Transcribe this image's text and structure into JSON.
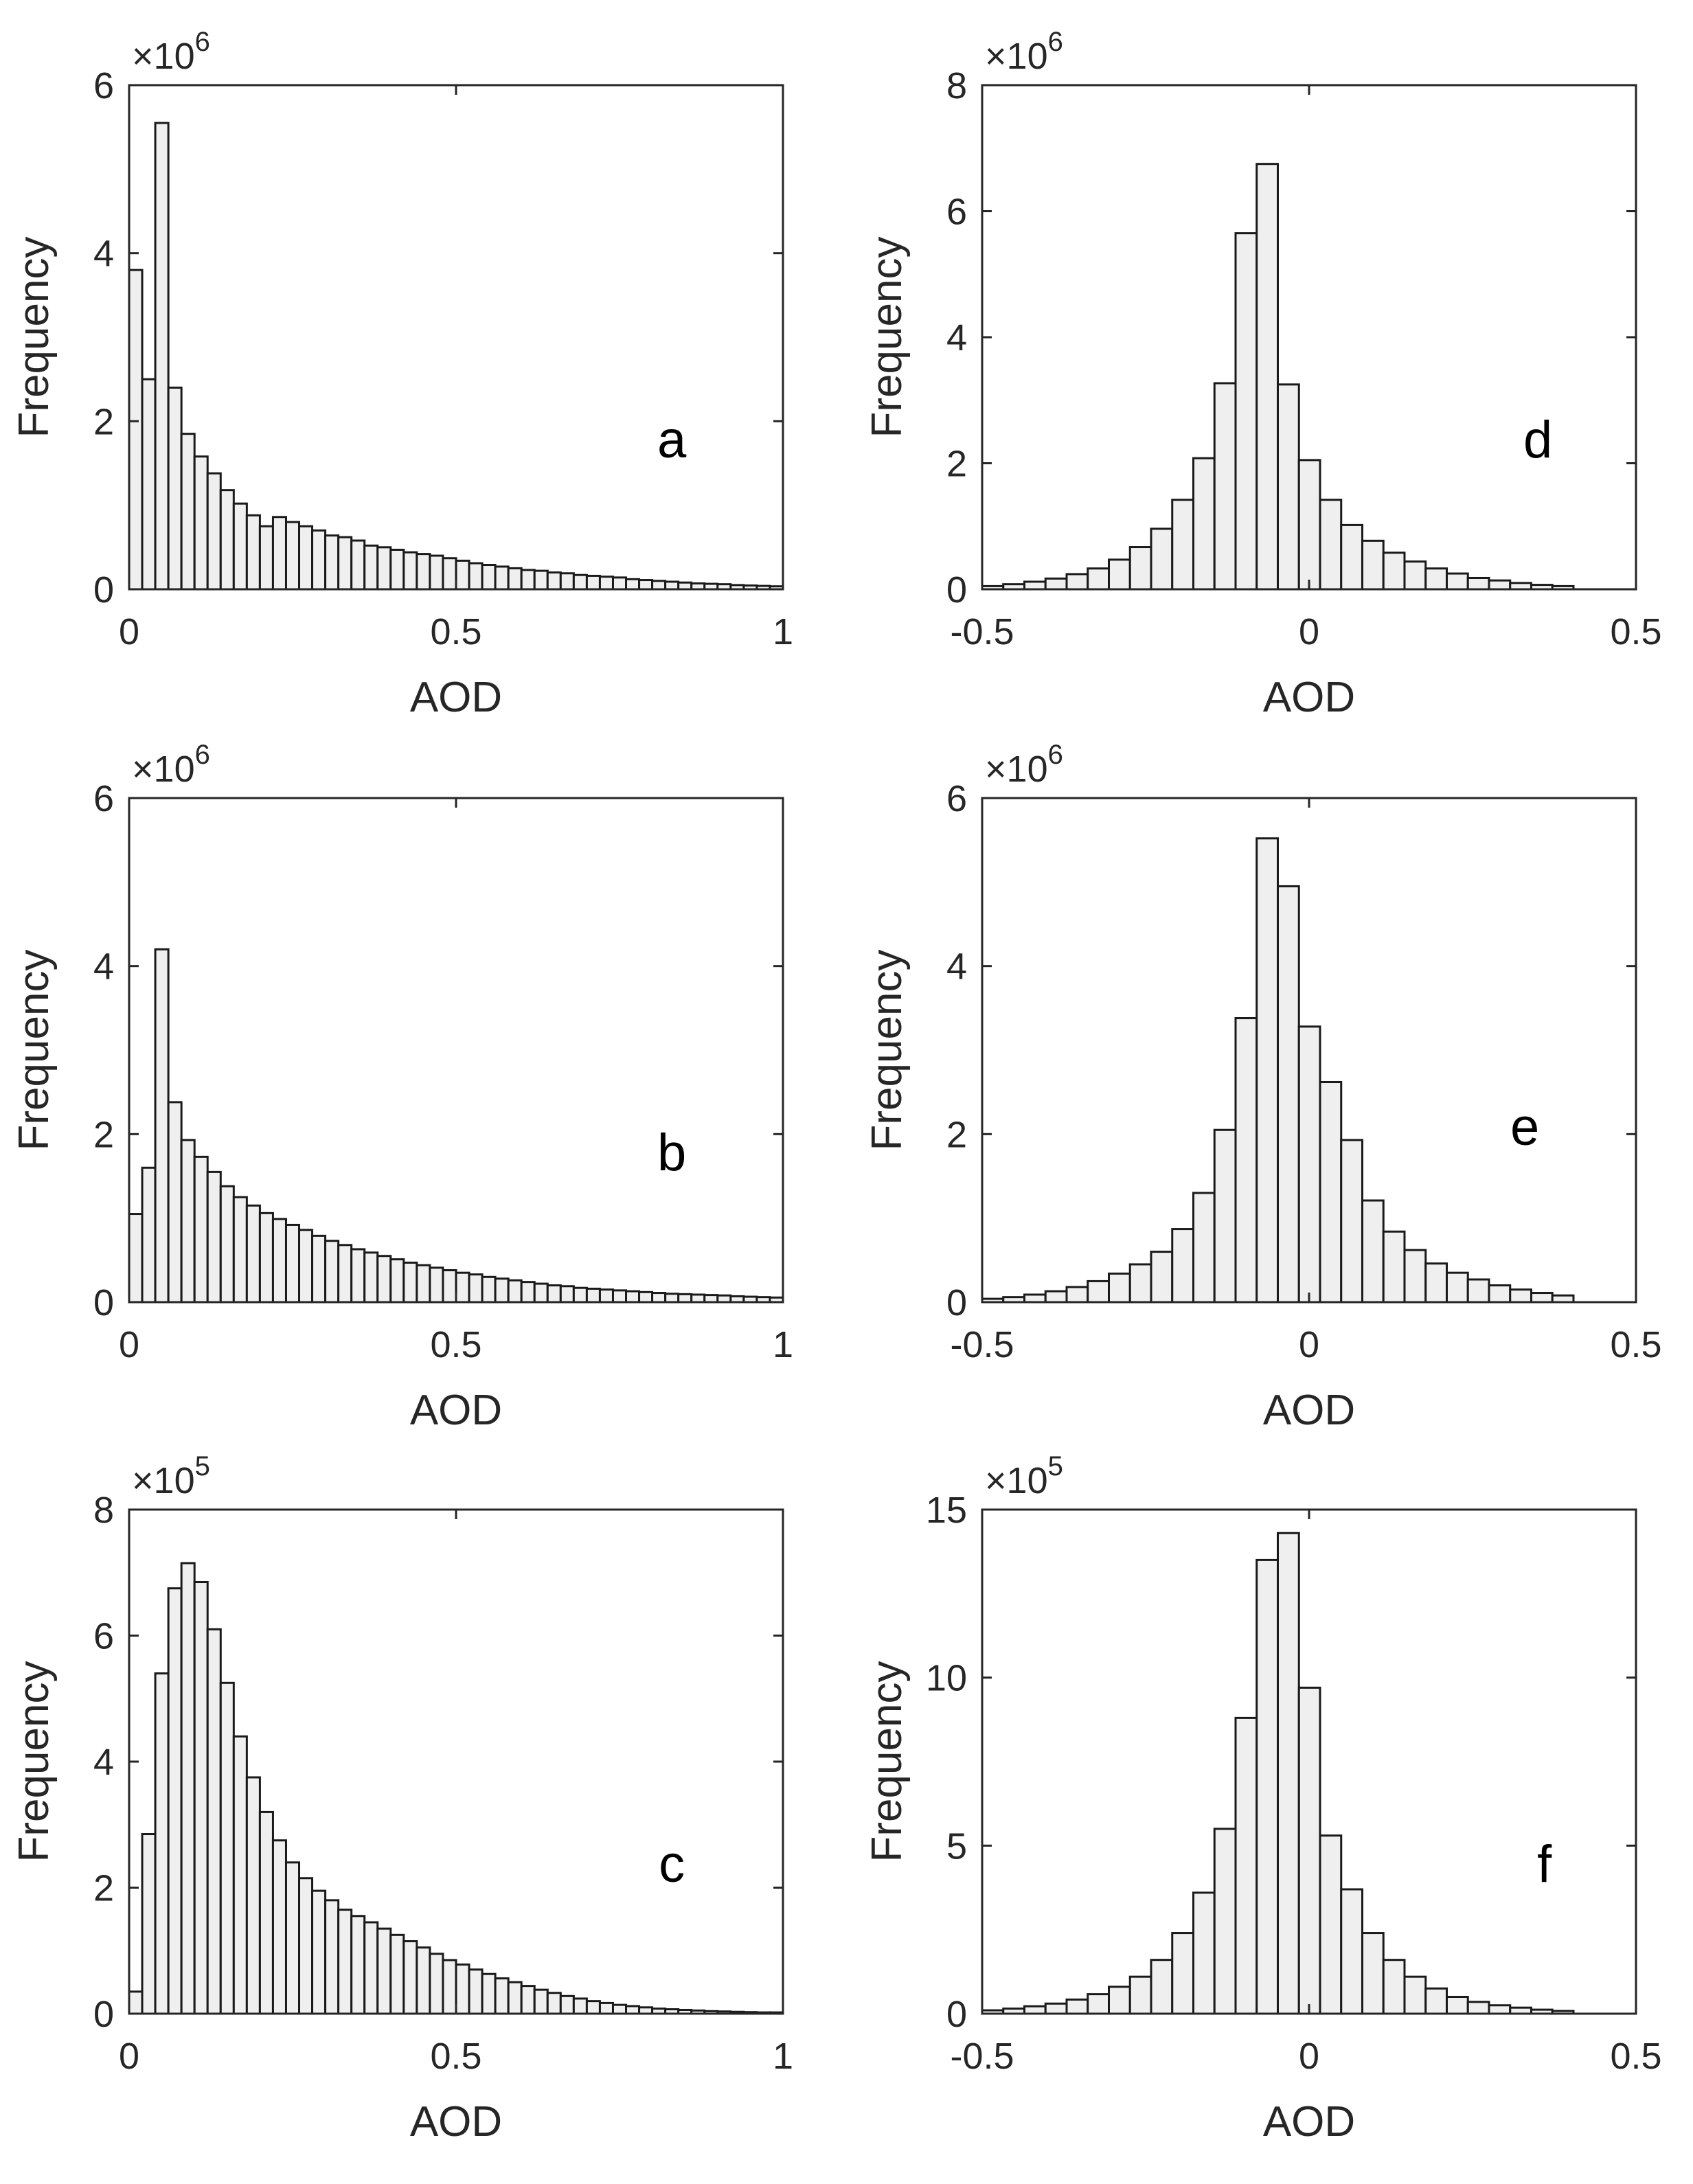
{
  "figure": {
    "panels": [
      "a",
      "b",
      "c",
      "d",
      "e",
      "f"
    ]
  },
  "chart_data": [
    {
      "panel_label": "a",
      "type": "bar",
      "xlabel": "AOD",
      "ylabel": "Frequency",
      "multiplier": "×10",
      "exponent": "6",
      "scale": 1000000,
      "xlim": [
        0,
        1
      ],
      "ylim": [
        0,
        6
      ],
      "xticks": [
        0,
        0.5,
        1
      ],
      "xtick_labels": [
        "0",
        "0.5",
        "1"
      ],
      "yticks": [
        0,
        2,
        4,
        6
      ],
      "ytick_labels": [
        "0",
        "2",
        "4",
        "6"
      ],
      "bin_start": 0,
      "bin_width": 0.02,
      "values": [
        3.8,
        2.5,
        5.55,
        2.4,
        1.85,
        1.58,
        1.38,
        1.18,
        1.02,
        0.88,
        0.75,
        0.86,
        0.8,
        0.75,
        0.7,
        0.64,
        0.62,
        0.58,
        0.52,
        0.5,
        0.47,
        0.44,
        0.42,
        0.4,
        0.37,
        0.34,
        0.31,
        0.29,
        0.27,
        0.25,
        0.23,
        0.22,
        0.2,
        0.19,
        0.17,
        0.16,
        0.15,
        0.14,
        0.12,
        0.11,
        0.1,
        0.09,
        0.08,
        0.07,
        0.065,
        0.06,
        0.05,
        0.045,
        0.04,
        0.035
      ]
    },
    {
      "panel_label": "b",
      "type": "bar",
      "xlabel": "AOD",
      "ylabel": "Frequency",
      "multiplier": "×10",
      "exponent": "6",
      "scale": 1000000,
      "xlim": [
        0,
        1
      ],
      "ylim": [
        0,
        6
      ],
      "xticks": [
        0,
        0.5,
        1
      ],
      "xtick_labels": [
        "0",
        "0.5",
        "1"
      ],
      "yticks": [
        0,
        2,
        4,
        6
      ],
      "ytick_labels": [
        "0",
        "2",
        "4",
        "6"
      ],
      "bin_start": 0,
      "bin_width": 0.02,
      "values": [
        1.05,
        1.6,
        4.2,
        2.38,
        1.93,
        1.73,
        1.55,
        1.38,
        1.25,
        1.15,
        1.06,
        0.99,
        0.92,
        0.86,
        0.79,
        0.73,
        0.68,
        0.63,
        0.59,
        0.55,
        0.51,
        0.47,
        0.44,
        0.41,
        0.38,
        0.35,
        0.33,
        0.3,
        0.28,
        0.26,
        0.24,
        0.22,
        0.2,
        0.19,
        0.17,
        0.16,
        0.15,
        0.14,
        0.13,
        0.12,
        0.11,
        0.1,
        0.095,
        0.09,
        0.085,
        0.08,
        0.07,
        0.065,
        0.06,
        0.055
      ]
    },
    {
      "panel_label": "c",
      "type": "bar",
      "xlabel": "AOD",
      "ylabel": "Frequency",
      "multiplier": "×10",
      "exponent": "5",
      "scale": 100000,
      "xlim": [
        0,
        1
      ],
      "ylim": [
        0,
        8
      ],
      "xticks": [
        0,
        0.5,
        1
      ],
      "xtick_labels": [
        "0",
        "0.5",
        "1"
      ],
      "yticks": [
        0,
        2,
        4,
        6,
        8
      ],
      "ytick_labels": [
        "0",
        "2",
        "4",
        "6",
        "8"
      ],
      "bin_start": 0,
      "bin_width": 0.02,
      "values": [
        0.35,
        2.85,
        5.4,
        6.75,
        7.15,
        6.85,
        6.1,
        5.25,
        4.4,
        3.75,
        3.2,
        2.75,
        2.4,
        2.15,
        1.95,
        1.8,
        1.65,
        1.55,
        1.45,
        1.35,
        1.25,
        1.15,
        1.05,
        0.95,
        0.85,
        0.78,
        0.7,
        0.63,
        0.56,
        0.5,
        0.44,
        0.38,
        0.33,
        0.28,
        0.24,
        0.2,
        0.17,
        0.14,
        0.12,
        0.1,
        0.08,
        0.07,
        0.06,
        0.05,
        0.04,
        0.035,
        0.03,
        0.025,
        0.02,
        0.02
      ]
    },
    {
      "panel_label": "d",
      "type": "bar",
      "xlabel": "AOD",
      "ylabel": "Frequency",
      "multiplier": "×10",
      "exponent": "6",
      "scale": 1000000,
      "xlim": [
        -0.5,
        0.5
      ],
      "ylim": [
        0,
        8
      ],
      "xticks": [
        -0.5,
        0,
        0.5
      ],
      "xtick_labels": [
        "-0.5",
        "0",
        "0.5"
      ],
      "yticks": [
        0,
        2,
        4,
        6,
        8
      ],
      "ytick_labels": [
        "0",
        "2",
        "4",
        "6",
        "8"
      ],
      "bin_start": -0.5,
      "bin_width": 0.0323,
      "values": [
        0.05,
        0.08,
        0.12,
        0.17,
        0.24,
        0.33,
        0.47,
        0.67,
        0.96,
        1.42,
        2.08,
        3.27,
        5.65,
        6.75,
        3.25,
        2.05,
        1.42,
        1.02,
        0.77,
        0.58,
        0.44,
        0.33,
        0.25,
        0.18,
        0.14,
        0.1,
        0.07,
        0.05
      ]
    },
    {
      "panel_label": "e",
      "type": "bar",
      "xlabel": "AOD",
      "ylabel": "Frequency",
      "multiplier": "×10",
      "exponent": "6",
      "scale": 1000000,
      "xlim": [
        -0.5,
        0.5
      ],
      "ylim": [
        0,
        6
      ],
      "xticks": [
        -0.5,
        0,
        0.5
      ],
      "xtick_labels": [
        "-0.5",
        "0",
        "0.5"
      ],
      "yticks": [
        0,
        2,
        4,
        6
      ],
      "ytick_labels": [
        "0",
        "2",
        "4",
        "6"
      ],
      "bin_start": -0.5,
      "bin_width": 0.0323,
      "values": [
        0.04,
        0.06,
        0.09,
        0.13,
        0.18,
        0.25,
        0.34,
        0.45,
        0.6,
        0.87,
        1.3,
        2.05,
        3.38,
        5.52,
        4.95,
        3.28,
        2.62,
        1.93,
        1.21,
        0.84,
        0.62,
        0.46,
        0.35,
        0.27,
        0.2,
        0.15,
        0.11,
        0.08
      ]
    },
    {
      "panel_label": "f",
      "type": "bar",
      "xlabel": "AOD",
      "ylabel": "Frequency",
      "multiplier": "×10",
      "exponent": "5",
      "scale": 100000,
      "xlim": [
        -0.5,
        0.5
      ],
      "ylim": [
        0,
        15
      ],
      "xticks": [
        -0.5,
        0,
        0.5
      ],
      "xtick_labels": [
        "-0.5",
        "0",
        "0.5"
      ],
      "yticks": [
        0,
        5,
        10,
        15
      ],
      "ytick_labels": [
        "0",
        "5",
        "10",
        "15"
      ],
      "bin_start": -0.5,
      "bin_width": 0.0323,
      "values": [
        0.1,
        0.15,
        0.22,
        0.3,
        0.42,
        0.58,
        0.8,
        1.1,
        1.6,
        2.4,
        3.6,
        5.5,
        8.8,
        13.5,
        14.3,
        9.7,
        5.3,
        3.7,
        2.4,
        1.6,
        1.1,
        0.75,
        0.5,
        0.35,
        0.25,
        0.18,
        0.12,
        0.08
      ]
    }
  ]
}
